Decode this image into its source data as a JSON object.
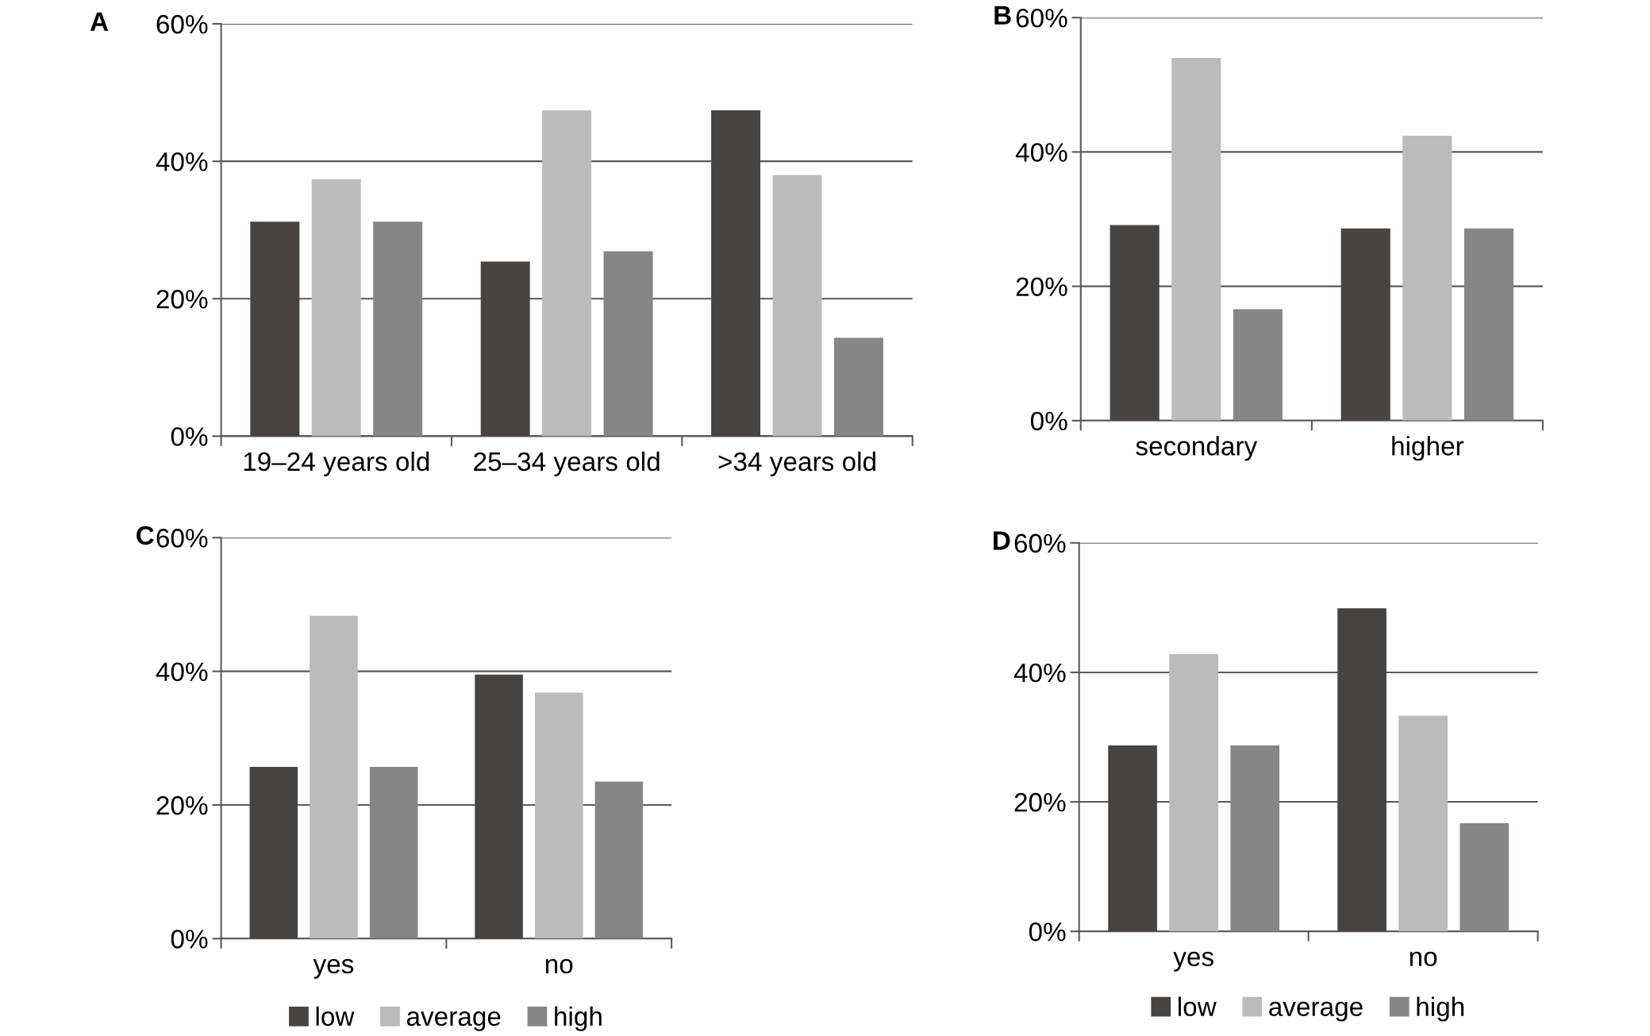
{
  "chart_data": [
    {
      "type": "bar",
      "annotations": [
        "A"
      ],
      "categories": [
        "19–24 years old",
        "25–34 years old",
        ">34 years old"
      ],
      "series": [
        {
          "color": "#48433f",
          "values": [
            31.2,
            25.4,
            47.4
          ]
        },
        {
          "color": "#bbbbb9",
          "values": [
            37.4,
            47.4,
            38.0
          ]
        },
        {
          "color": "#878682",
          "values": [
            31.2,
            26.9,
            14.3
          ]
        }
      ],
      "ylim": [
        0,
        60
      ],
      "yticks": [
        {
          "value": 0,
          "label": "0%"
        },
        {
          "value": 20,
          "label": "20%"
        },
        {
          "value": 40,
          "label": "40%"
        },
        {
          "value": 60,
          "label": "60%"
        }
      ],
      "grid": "y",
      "legend": false
    },
    {
      "type": "bar",
      "annotations": [
        "B"
      ],
      "categories": [
        "secondary",
        "higher"
      ],
      "series": [
        {
          "color": "#48433f",
          "values": [
            29.1,
            28.6
          ]
        },
        {
          "color": "#bbbbb9",
          "values": [
            54.0,
            42.4
          ]
        },
        {
          "color": "#878682",
          "values": [
            16.6,
            28.6
          ]
        }
      ],
      "ylim": [
        0,
        60
      ],
      "yticks": [
        {
          "value": 0,
          "label": "0%"
        },
        {
          "value": 20,
          "label": "20%"
        },
        {
          "value": 40,
          "label": "40%"
        },
        {
          "value": 60,
          "label": "60%"
        }
      ],
      "grid": "y",
      "legend": false
    },
    {
      "type": "bar",
      "annotations": [
        "C"
      ],
      "categories": [
        "yes",
        "no"
      ],
      "series": [
        {
          "name": "low",
          "color": "#48433f",
          "values": [
            25.7,
            39.5
          ]
        },
        {
          "name": "average",
          "color": "#bbbbb9",
          "values": [
            48.3,
            36.8
          ]
        },
        {
          "name": "high",
          "color": "#878682",
          "values": [
            25.7,
            23.5
          ]
        }
      ],
      "ylim": [
        0,
        60
      ],
      "yticks": [
        {
          "value": 0,
          "label": "0%"
        },
        {
          "value": 20,
          "label": "20%"
        },
        {
          "value": 40,
          "label": "40%"
        },
        {
          "value": 60,
          "label": "60%"
        }
      ],
      "grid": "y",
      "legend": "bottom"
    },
    {
      "type": "bar",
      "annotations": [
        "D"
      ],
      "categories": [
        "yes",
        "no"
      ],
      "series": [
        {
          "name": "low",
          "color": "#48433f",
          "values": [
            28.7,
            49.9
          ]
        },
        {
          "name": "average",
          "color": "#bbbbb9",
          "values": [
            42.8,
            33.3
          ]
        },
        {
          "name": "high",
          "color": "#878682",
          "values": [
            28.7,
            16.7
          ]
        }
      ],
      "ylim": [
        0,
        60
      ],
      "yticks": [
        {
          "value": 0,
          "label": "0%"
        },
        {
          "value": 20,
          "label": "20%"
        },
        {
          "value": 40,
          "label": "40%"
        },
        {
          "value": 60,
          "label": "60%"
        }
      ],
      "grid": "y",
      "legend": "bottom"
    }
  ]
}
